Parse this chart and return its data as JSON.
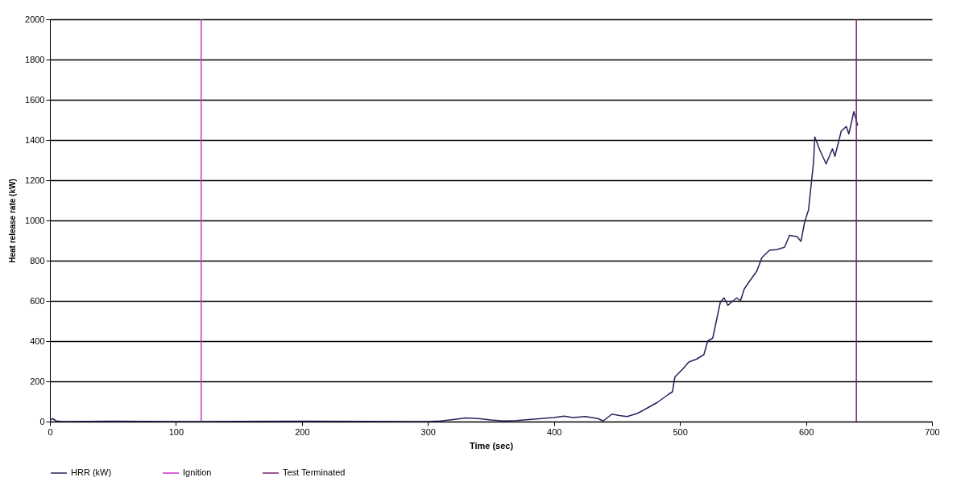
{
  "chart_data": {
    "type": "line",
    "xlabel": "Time (sec)",
    "ylabel": "Heat release rate (kW)",
    "xlim": [
      0,
      700
    ],
    "xticks": [
      0,
      100,
      200,
      300,
      400,
      500,
      600,
      700
    ],
    "ylim": [
      0,
      2000
    ],
    "yticks": [
      0,
      200,
      400,
      600,
      800,
      1000,
      1200,
      1400,
      1600,
      1800,
      2000
    ],
    "grid": "y",
    "legend": "bottom",
    "marker": "none",
    "line_style": "solid",
    "series": [
      {
        "name": "HRR (kW)",
        "color": "#24245e",
        "x": [
          0,
          2,
          5,
          10,
          50,
          100,
          150,
          200,
          250,
          300,
          310,
          320,
          330,
          340,
          350,
          360,
          370,
          380,
          390,
          400,
          408,
          415,
          425,
          435,
          439,
          446,
          452,
          458,
          466,
          474,
          482,
          491,
          494,
          496,
          502,
          507,
          513,
          519,
          522,
          526,
          532,
          535,
          538,
          545,
          548,
          551,
          555,
          561,
          565,
          571,
          577,
          583,
          587,
          593,
          596,
          599,
          602,
          604,
          606,
          607,
          611,
          616,
          621,
          623,
          628,
          632,
          634,
          638,
          641
        ],
        "values": [
          5,
          15,
          3,
          0,
          2,
          0,
          1,
          2,
          1,
          0,
          3,
          10,
          18,
          15,
          8,
          3,
          5,
          10,
          15,
          20,
          27,
          20,
          25,
          15,
          3,
          37,
          30,
          25,
          40,
          67,
          95,
          136,
          148,
          222,
          260,
          296,
          310,
          333,
          400,
          415,
          593,
          615,
          578,
          615,
          600,
          659,
          696,
          748,
          815,
          852,
          855,
          867,
          926,
          919,
          896,
          993,
          1052,
          1170,
          1289,
          1415,
          1350,
          1281,
          1356,
          1319,
          1444,
          1467,
          1430,
          1541,
          1474
        ]
      },
      {
        "name": "Ignition",
        "color": "#cc33cc",
        "x": [
          120,
          120
        ],
        "values": [
          0,
          2000
        ]
      },
      {
        "name": "Test Terminated",
        "color": "#7a1f6a",
        "x": [
          640,
          640
        ],
        "values": [
          0,
          2000
        ]
      }
    ]
  }
}
